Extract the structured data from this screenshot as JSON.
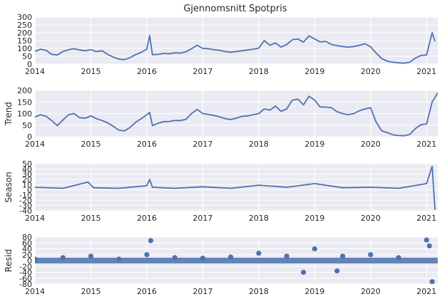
{
  "figure": {
    "title": "Gjennomsnitt Spotpris",
    "colors": {
      "panel_bg": "#EAEAF2",
      "grid": "#FFFFFF",
      "series": "#4C72B0",
      "text": "#262626"
    }
  },
  "chart_data": [
    {
      "type": "line",
      "title": "Gjennomsnitt Spotpris",
      "ylabel": "",
      "xlim": [
        2014.0,
        2021.2
      ],
      "ylim": [
        0,
        300
      ],
      "x_ticks": [
        "2014",
        "2015",
        "2016",
        "2017",
        "2018",
        "2019",
        "2020",
        "2021"
      ],
      "y_ticks": [
        "0",
        "50",
        "100",
        "150",
        "200",
        "250",
        "300"
      ],
      "grid": true,
      "x": [
        2014.0,
        2014.1,
        2014.2,
        2014.3,
        2014.4,
        2014.5,
        2014.6,
        2014.7,
        2014.8,
        2014.9,
        2015.0,
        2015.1,
        2015.2,
        2015.3,
        2015.4,
        2015.5,
        2015.6,
        2015.7,
        2015.8,
        2015.9,
        2016.0,
        2016.05,
        2016.1,
        2016.2,
        2016.3,
        2016.4,
        2016.5,
        2016.6,
        2016.7,
        2016.8,
        2016.9,
        2017.0,
        2017.1,
        2017.2,
        2017.3,
        2017.4,
        2017.5,
        2017.6,
        2017.7,
        2017.8,
        2017.9,
        2018.0,
        2018.1,
        2018.2,
        2018.3,
        2018.4,
        2018.5,
        2018.6,
        2018.7,
        2018.8,
        2018.9,
        2019.0,
        2019.1,
        2019.2,
        2019.3,
        2019.4,
        2019.5,
        2019.6,
        2019.7,
        2019.8,
        2019.9,
        2020.0,
        2020.1,
        2020.2,
        2020.3,
        2020.4,
        2020.5,
        2020.6,
        2020.7,
        2020.8,
        2020.9,
        2021.0,
        2021.1,
        2021.15
      ],
      "y": [
        82,
        95,
        88,
        62,
        58,
        80,
        92,
        98,
        90,
        85,
        92,
        80,
        85,
        62,
        45,
        32,
        28,
        42,
        60,
        75,
        95,
        182,
        60,
        62,
        68,
        66,
        72,
        70,
        78,
        98,
        120,
        100,
        98,
        92,
        88,
        80,
        76,
        80,
        85,
        90,
        95,
        102,
        150,
        120,
        135,
        108,
        125,
        155,
        160,
        140,
        180,
        160,
        142,
        145,
        125,
        118,
        112,
        108,
        112,
        120,
        130,
        110,
        70,
        35,
        18,
        12,
        8,
        6,
        12,
        38,
        55,
        58,
        200,
        145
      ]
    },
    {
      "type": "line",
      "title": "",
      "ylabel": "Trend",
      "xlim": [
        2014.0,
        2021.2
      ],
      "ylim": [
        0,
        200
      ],
      "x_ticks": [
        "2014",
        "2015",
        "2016",
        "2017",
        "2018",
        "2019",
        "2020",
        "2021"
      ],
      "y_ticks": [
        "0",
        "50",
        "100",
        "150",
        "200"
      ],
      "grid": true,
      "x": [
        2014.0,
        2014.1,
        2014.2,
        2014.3,
        2014.4,
        2014.5,
        2014.6,
        2014.7,
        2014.8,
        2014.9,
        2015.0,
        2015.1,
        2015.2,
        2015.3,
        2015.4,
        2015.5,
        2015.6,
        2015.7,
        2015.8,
        2015.9,
        2016.0,
        2016.05,
        2016.1,
        2016.2,
        2016.3,
        2016.4,
        2016.5,
        2016.6,
        2016.7,
        2016.8,
        2016.9,
        2017.0,
        2017.1,
        2017.2,
        2017.3,
        2017.4,
        2017.5,
        2017.6,
        2017.7,
        2017.8,
        2017.9,
        2018.0,
        2018.1,
        2018.2,
        2018.3,
        2018.4,
        2018.5,
        2018.6,
        2018.7,
        2018.8,
        2018.9,
        2019.0,
        2019.1,
        2019.2,
        2019.3,
        2019.4,
        2019.5,
        2019.6,
        2019.7,
        2019.8,
        2019.9,
        2020.0,
        2020.1,
        2020.2,
        2020.3,
        2020.4,
        2020.5,
        2020.6,
        2020.7,
        2020.8,
        2020.9,
        2021.0,
        2021.1,
        2021.2
      ],
      "y": [
        85,
        95,
        88,
        70,
        48,
        72,
        95,
        100,
        82,
        80,
        90,
        78,
        70,
        60,
        45,
        28,
        25,
        40,
        62,
        78,
        95,
        105,
        48,
        58,
        65,
        66,
        70,
        70,
        75,
        100,
        118,
        100,
        96,
        92,
        86,
        78,
        74,
        80,
        88,
        90,
        95,
        100,
        120,
        115,
        132,
        110,
        120,
        158,
        162,
        138,
        175,
        158,
        128,
        128,
        125,
        108,
        100,
        95,
        100,
        112,
        120,
        125,
        62,
        25,
        18,
        8,
        5,
        4,
        10,
        35,
        52,
        55,
        150,
        190
      ]
    },
    {
      "type": "line",
      "title": "",
      "ylabel": "Season",
      "xlim": [
        2014.0,
        2021.2
      ],
      "ylim": [
        -40,
        50
      ],
      "x_ticks": [
        "2014",
        "2015",
        "2016",
        "2017",
        "2018",
        "2019",
        "2020",
        "2021"
      ],
      "y_ticks": [
        "-40",
        "-30",
        "-20",
        "-10",
        "0",
        "10",
        "20",
        "30",
        "40",
        "50"
      ],
      "grid": true,
      "x": [
        2014.0,
        2014.5,
        2014.95,
        2015.05,
        2015.5,
        2016.0,
        2016.05,
        2016.1,
        2016.5,
        2017.0,
        2017.5,
        2018.0,
        2018.5,
        2019.0,
        2019.5,
        2020.0,
        2020.5,
        2021.0,
        2021.1,
        2021.15
      ],
      "y": [
        5,
        3,
        15,
        4,
        3,
        8,
        20,
        5,
        3,
        6,
        3,
        9,
        5,
        12,
        4,
        5,
        3,
        12,
        45,
        -38
      ]
    },
    {
      "type": "scatter",
      "title": "",
      "ylabel": "Resid",
      "xlim": [
        2014.0,
        2021.2
      ],
      "ylim": [
        -80,
        80
      ],
      "x_ticks": [
        "2014",
        "2015",
        "2016",
        "2017",
        "2018",
        "2019",
        "2020",
        "2021"
      ],
      "y_ticks": [
        "-80",
        "-60",
        "-40",
        "-20",
        "0",
        "20",
        "40",
        "60",
        "80"
      ],
      "grid": true,
      "x": [
        2014.0,
        2014.5,
        2015.0,
        2015.5,
        2016.0,
        2016.07,
        2016.5,
        2017.0,
        2017.5,
        2018.0,
        2018.5,
        2018.8,
        2019.0,
        2019.4,
        2019.5,
        2020.0,
        2020.5,
        2021.0,
        2021.05,
        2021.1
      ],
      "y": [
        5,
        10,
        15,
        5,
        20,
        68,
        10,
        8,
        12,
        25,
        15,
        -40,
        40,
        -35,
        15,
        20,
        10,
        70,
        50,
        -72
      ]
    }
  ]
}
